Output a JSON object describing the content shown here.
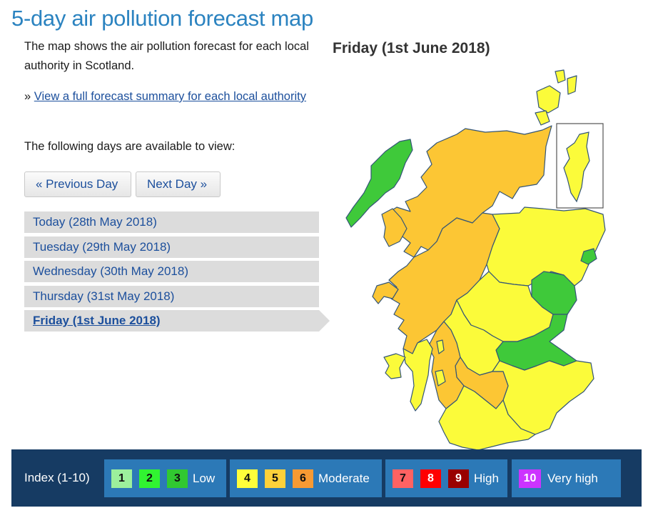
{
  "page": {
    "title": "5-day air pollution forecast map",
    "intro": "The map shows the air pollution forecast for each local authority in Scotland.",
    "summary_prefix": "» ",
    "summary_link": "View a full forecast summary for each local authority",
    "available_text": "The following days are available to view:"
  },
  "nav": {
    "prev_label": "« Previous Day",
    "next_label": "Next Day »"
  },
  "days": [
    {
      "label": "Today (28th May 2018)",
      "active": false
    },
    {
      "label": "Tuesday (29th May 2018)",
      "active": false
    },
    {
      "label": "Wednesday (30th May 2018)",
      "active": false
    },
    {
      "label": "Thursday (31st May 2018)",
      "active": false
    },
    {
      "label": "Friday (1st June 2018)",
      "active": true
    }
  ],
  "map": {
    "title": "Friday (1st June 2018)",
    "colors": {
      "low_green": "#3fc93a",
      "moderate_yellow": "#fbfb3a",
      "moderate_orange": "#fcc634",
      "border": "#335577",
      "inset_border": "#555555"
    }
  },
  "legend": {
    "title": "Index (1-10)",
    "groups": [
      {
        "label": "Low",
        "chips": [
          {
            "value": "1",
            "color": "#9cf09c"
          },
          {
            "value": "2",
            "color": "#31f431"
          },
          {
            "value": "3",
            "color": "#31c831"
          }
        ]
      },
      {
        "label": "Moderate",
        "chips": [
          {
            "value": "4",
            "color": "#fefe3a"
          },
          {
            "value": "5",
            "color": "#fdd13a"
          },
          {
            "value": "6",
            "color": "#f79a33"
          }
        ]
      },
      {
        "label": "High",
        "chips": [
          {
            "value": "7",
            "color": "#ff6262"
          },
          {
            "value": "8",
            "color": "#ff0000"
          },
          {
            "value": "9",
            "color": "#990000"
          }
        ]
      },
      {
        "label": "Very high",
        "chips": [
          {
            "value": "10",
            "color": "#cc33ff"
          }
        ]
      }
    ]
  }
}
